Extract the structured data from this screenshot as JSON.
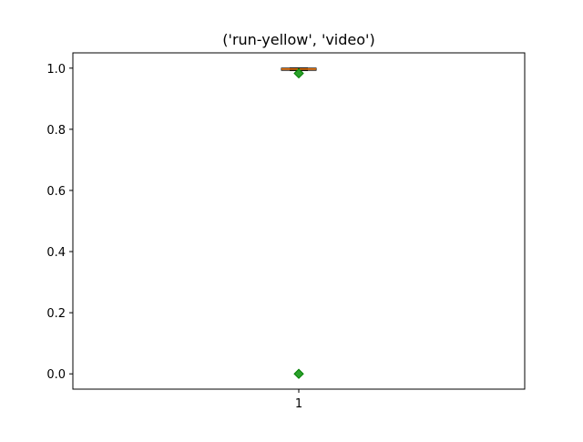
{
  "chart_data": {
    "type": "box",
    "title": "('run-yellow', 'video')",
    "xlabel": "",
    "ylabel": "",
    "ylim": [
      -0.05,
      1.05
    ],
    "x_ticks": [
      {
        "pos": 1,
        "label": "1"
      }
    ],
    "y_ticks": [
      {
        "value": 0.0,
        "label": "0.0"
      },
      {
        "value": 0.2,
        "label": "0.2"
      },
      {
        "value": 0.4,
        "label": "0.4"
      },
      {
        "value": 0.6,
        "label": "0.6"
      },
      {
        "value": 0.8,
        "label": "0.8"
      },
      {
        "value": 1.0,
        "label": "1.0"
      }
    ],
    "boxes": [
      {
        "position": 1,
        "q1": 0.993,
        "median": 0.997,
        "q3": 1.0,
        "whisker_low": 0.993,
        "whisker_high": 1.0,
        "fliers": [
          0.983,
          0.0
        ]
      }
    ],
    "colors": {
      "box": "#000000",
      "median": "#ff7f0e",
      "flier": "#2ca02c",
      "flier_edge": "#008000"
    }
  }
}
